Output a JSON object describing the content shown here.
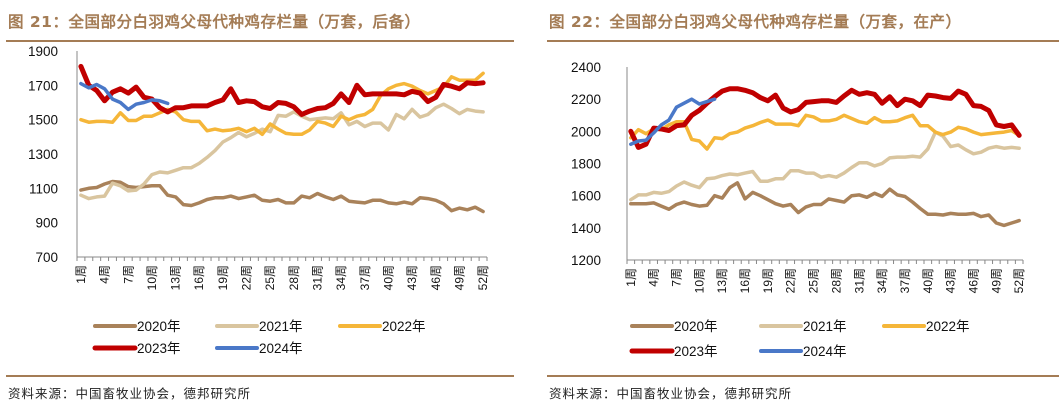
{
  "colors": {
    "2020": "#A9825A",
    "2021": "#D9C59F",
    "2022": "#F5B639",
    "2023": "#C00000",
    "2024": "#4A78C8",
    "rule": "#A47C55",
    "title": "#A47C55"
  },
  "source_label": "资料来源：中国畜牧业协会，德邦研究所",
  "chart_data": [
    {
      "type": "line",
      "title": "图 21：全国部分白羽鸡父母代种鸡存栏量（万套，后备）",
      "ylim": [
        700,
        1900
      ],
      "yticks": [
        "700",
        "900",
        "1100",
        "1300",
        "1500",
        "1700",
        "1900"
      ],
      "xticks": [
        "1周",
        "4周",
        "7周",
        "10周",
        "13周",
        "16周",
        "19周",
        "22周",
        "25周",
        "28周",
        "31周",
        "34周",
        "37周",
        "40周",
        "43周",
        "46周",
        "49周",
        "52周"
      ],
      "legend_position": "bottom",
      "grid": false,
      "series": [
        {
          "name": "2020年",
          "values": [
            1090,
            1100,
            1105,
            1125,
            1140,
            1135,
            1110,
            1105,
            1110,
            1115,
            1115,
            1060,
            1050,
            1005,
            1000,
            1015,
            1035,
            1045,
            1045,
            1055,
            1040,
            1050,
            1060,
            1030,
            1025,
            1035,
            1015,
            1015,
            1055,
            1045,
            1070,
            1050,
            1035,
            1055,
            1025,
            1020,
            1015,
            1030,
            1030,
            1015,
            1010,
            1020,
            1010,
            1045,
            1040,
            1030,
            1010,
            970,
            985,
            975,
            990,
            965
          ]
        },
        {
          "name": "2021年",
          "values": [
            1060,
            1040,
            1050,
            1055,
            1130,
            1115,
            1085,
            1090,
            1125,
            1180,
            1195,
            1190,
            1205,
            1220,
            1220,
            1245,
            1280,
            1320,
            1370,
            1395,
            1425,
            1400,
            1420,
            1445,
            1430,
            1525,
            1520,
            1545,
            1520,
            1500,
            1505,
            1510,
            1505,
            1540,
            1470,
            1490,
            1460,
            1480,
            1480,
            1440,
            1530,
            1505,
            1560,
            1515,
            1530,
            1570,
            1590,
            1565,
            1535,
            1560,
            1550,
            1545
          ]
        },
        {
          "name": "2022年",
          "values": [
            1500,
            1485,
            1490,
            1490,
            1485,
            1540,
            1495,
            1495,
            1520,
            1520,
            1540,
            1560,
            1545,
            1500,
            1490,
            1490,
            1435,
            1445,
            1435,
            1440,
            1450,
            1430,
            1450,
            1415,
            1475,
            1445,
            1420,
            1415,
            1415,
            1440,
            1490,
            1480,
            1460,
            1520,
            1500,
            1520,
            1530,
            1560,
            1640,
            1680,
            1700,
            1710,
            1695,
            1670,
            1650,
            1670,
            1690,
            1750,
            1730,
            1730,
            1730,
            1770
          ]
        },
        {
          "name": "2023年",
          "values": [
            1810,
            1700,
            1670,
            1610,
            1660,
            1680,
            1655,
            1690,
            1630,
            1620,
            1570,
            1545,
            1570,
            1570,
            1580,
            1580,
            1580,
            1600,
            1615,
            1680,
            1600,
            1610,
            1605,
            1575,
            1565,
            1600,
            1595,
            1575,
            1530,
            1550,
            1565,
            1570,
            1595,
            1650,
            1600,
            1700,
            1645,
            1650,
            1650,
            1650,
            1650,
            1645,
            1665,
            1655,
            1605,
            1630,
            1705,
            1695,
            1680,
            1715,
            1710,
            1715
          ]
        },
        {
          "name": "2024年",
          "values": [
            1710,
            1685,
            1705,
            1680,
            1620,
            1600,
            1560,
            1590,
            1600,
            1615,
            1610,
            1595
          ]
        }
      ]
    },
    {
      "type": "line",
      "title": "图 22：全国部分白羽鸡父母代种鸡存栏量（万套，在产）",
      "ylim": [
        1200,
        2400
      ],
      "yticks": [
        "1200",
        "1400",
        "1600",
        "1800",
        "2000",
        "2200",
        "2400"
      ],
      "xticks": [
        "1周",
        "4周",
        "7周",
        "10周",
        "13周",
        "16周",
        "19周",
        "22周",
        "25周",
        "28周",
        "31周",
        "34周",
        "37周",
        "40周",
        "43周",
        "46周",
        "49周",
        "52周"
      ],
      "legend_position": "bottom",
      "grid": false,
      "series": [
        {
          "name": "2020年",
          "values": [
            1550,
            1550,
            1550,
            1555,
            1535,
            1515,
            1545,
            1560,
            1545,
            1535,
            1540,
            1600,
            1585,
            1650,
            1680,
            1580,
            1620,
            1600,
            1575,
            1550,
            1535,
            1545,
            1495,
            1530,
            1545,
            1545,
            1580,
            1570,
            1560,
            1600,
            1605,
            1590,
            1615,
            1595,
            1640,
            1605,
            1595,
            1560,
            1520,
            1485,
            1485,
            1480,
            1490,
            1485,
            1485,
            1490,
            1470,
            1480,
            1430,
            1415,
            1430,
            1445
          ]
        },
        {
          "name": "2021年",
          "values": [
            1575,
            1605,
            1605,
            1620,
            1615,
            1625,
            1660,
            1685,
            1665,
            1650,
            1705,
            1710,
            1725,
            1735,
            1730,
            1740,
            1750,
            1690,
            1690,
            1705,
            1705,
            1755,
            1755,
            1740,
            1740,
            1715,
            1725,
            1715,
            1740,
            1775,
            1805,
            1805,
            1785,
            1800,
            1835,
            1840,
            1840,
            1845,
            1840,
            1890,
            1995,
            1970,
            1905,
            1915,
            1885,
            1860,
            1870,
            1895,
            1905,
            1895,
            1900,
            1895
          ]
        },
        {
          "name": "2022年",
          "values": [
            1960,
            2010,
            1985,
            2015,
            2010,
            2040,
            2060,
            2060,
            1950,
            1940,
            1890,
            1960,
            1955,
            1985,
            1995,
            2020,
            2035,
            2055,
            2070,
            2045,
            2045,
            2045,
            2035,
            2100,
            2090,
            2065,
            2065,
            2075,
            2100,
            2080,
            2060,
            2050,
            2085,
            2060,
            2060,
            2065,
            2085,
            2100,
            2035,
            2035,
            1995,
            1980,
            1995,
            2025,
            2015,
            1995,
            1980,
            1985,
            1990,
            1995,
            2005,
            1975
          ]
        },
        {
          "name": "2023年",
          "values": [
            2000,
            1900,
            1920,
            2020,
            2015,
            2005,
            2035,
            2040,
            2100,
            2130,
            2175,
            2215,
            2250,
            2265,
            2265,
            2255,
            2240,
            2210,
            2190,
            2225,
            2145,
            2120,
            2135,
            2180,
            2185,
            2190,
            2190,
            2180,
            2220,
            2255,
            2230,
            2240,
            2230,
            2175,
            2215,
            2160,
            2200,
            2190,
            2160,
            2225,
            2220,
            2210,
            2205,
            2250,
            2230,
            2160,
            2155,
            2130,
            2040,
            2030,
            2040,
            1975
          ]
        },
        {
          "name": "2024年",
          "values": [
            1920,
            1940,
            1945,
            1990,
            2040,
            2070,
            2150,
            2175,
            2200,
            2170,
            2185,
            2200
          ]
        }
      ]
    }
  ]
}
